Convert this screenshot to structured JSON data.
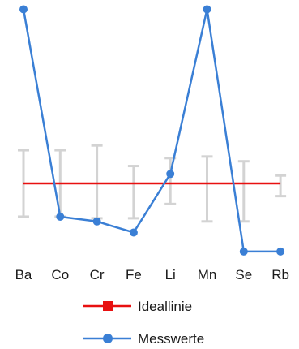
{
  "chart_data": {
    "type": "line",
    "categories": [
      "Ba",
      "Co",
      "Cr",
      "Fe",
      "Li",
      "Mn",
      "Se",
      "Rb"
    ],
    "series": [
      {
        "name": "Ideallinie",
        "color": "#e81010",
        "marker": "square",
        "values": [
          0,
          0,
          0,
          0,
          0,
          0,
          0,
          0
        ]
      },
      {
        "name": "Messwerte",
        "color": "#3a7fd5",
        "marker": "circle",
        "values": [
          11,
          -2.1,
          -2.4,
          -3.1,
          0.6,
          11,
          -4.3,
          -4.3
        ]
      }
    ],
    "error_bars": [
      {
        "low": -2.1,
        "high": 2.1
      },
      {
        "low": -2.1,
        "high": 2.1
      },
      {
        "low": -2.2,
        "high": 2.4
      },
      {
        "low": -2.2,
        "high": 1.1
      },
      {
        "low": -1.3,
        "high": 1.6
      },
      {
        "low": -2.4,
        "high": 1.7
      },
      {
        "low": -2.4,
        "high": 1.4
      },
      {
        "low": -0.8,
        "high": 0.5
      }
    ],
    "error_bar_color": "#d3d3d3",
    "ylim": [
      -5,
      10.5
    ],
    "grid": false,
    "legend_position": "bottom"
  }
}
